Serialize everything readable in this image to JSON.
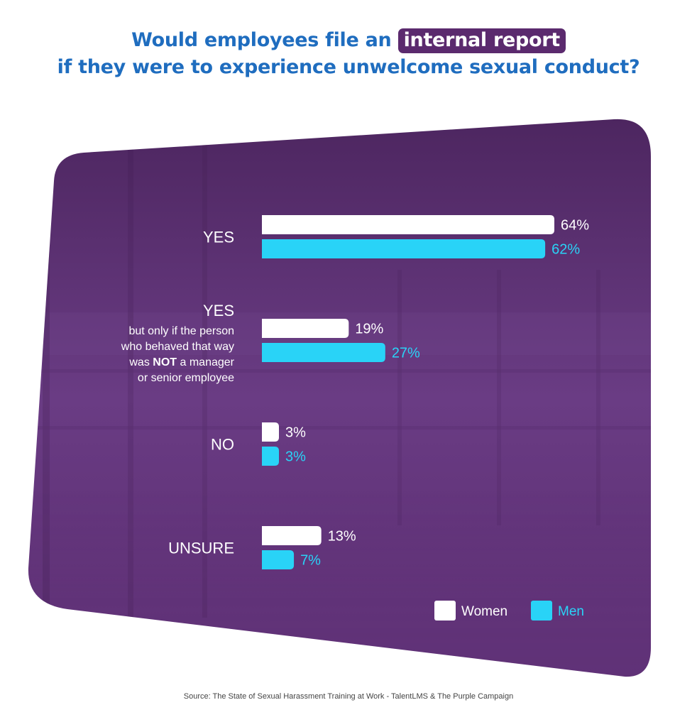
{
  "title": {
    "line1_before": "Would employees file an ",
    "line1_highlight": "internal report",
    "line2": "if they were to experience unwelcome sexual conduct?"
  },
  "source": "Source: The State of Sexual Harassment Training at Work - TalentLMS & The Purple Campaign",
  "chart_data": {
    "type": "bar",
    "orientation": "horizontal",
    "categories": [
      {
        "main": "YES",
        "sub": []
      },
      {
        "main": "YES",
        "sub": [
          "but only if the person",
          "who behaved that way",
          "was |NOT| a manager",
          "or senior employee"
        ]
      },
      {
        "main": "NO",
        "sub": []
      },
      {
        "main": "UNSURE",
        "sub": []
      }
    ],
    "series": [
      {
        "name": "Women",
        "color": "#ffffff",
        "label_color": "#ffffff",
        "values": [
          64,
          19,
          3,
          13
        ],
        "labels": [
          "64%",
          "19%",
          "3%",
          "13%"
        ]
      },
      {
        "name": "Men",
        "color": "#29d3f7",
        "label_color": "#29d3f7",
        "values": [
          62,
          27,
          3,
          7
        ],
        "labels": [
          "62%",
          "27%",
          "3%",
          "7%"
        ]
      }
    ],
    "xlim": [
      0,
      64
    ],
    "legend_position": "bottom-right",
    "grid": false,
    "background_color": "#5a2d72"
  }
}
